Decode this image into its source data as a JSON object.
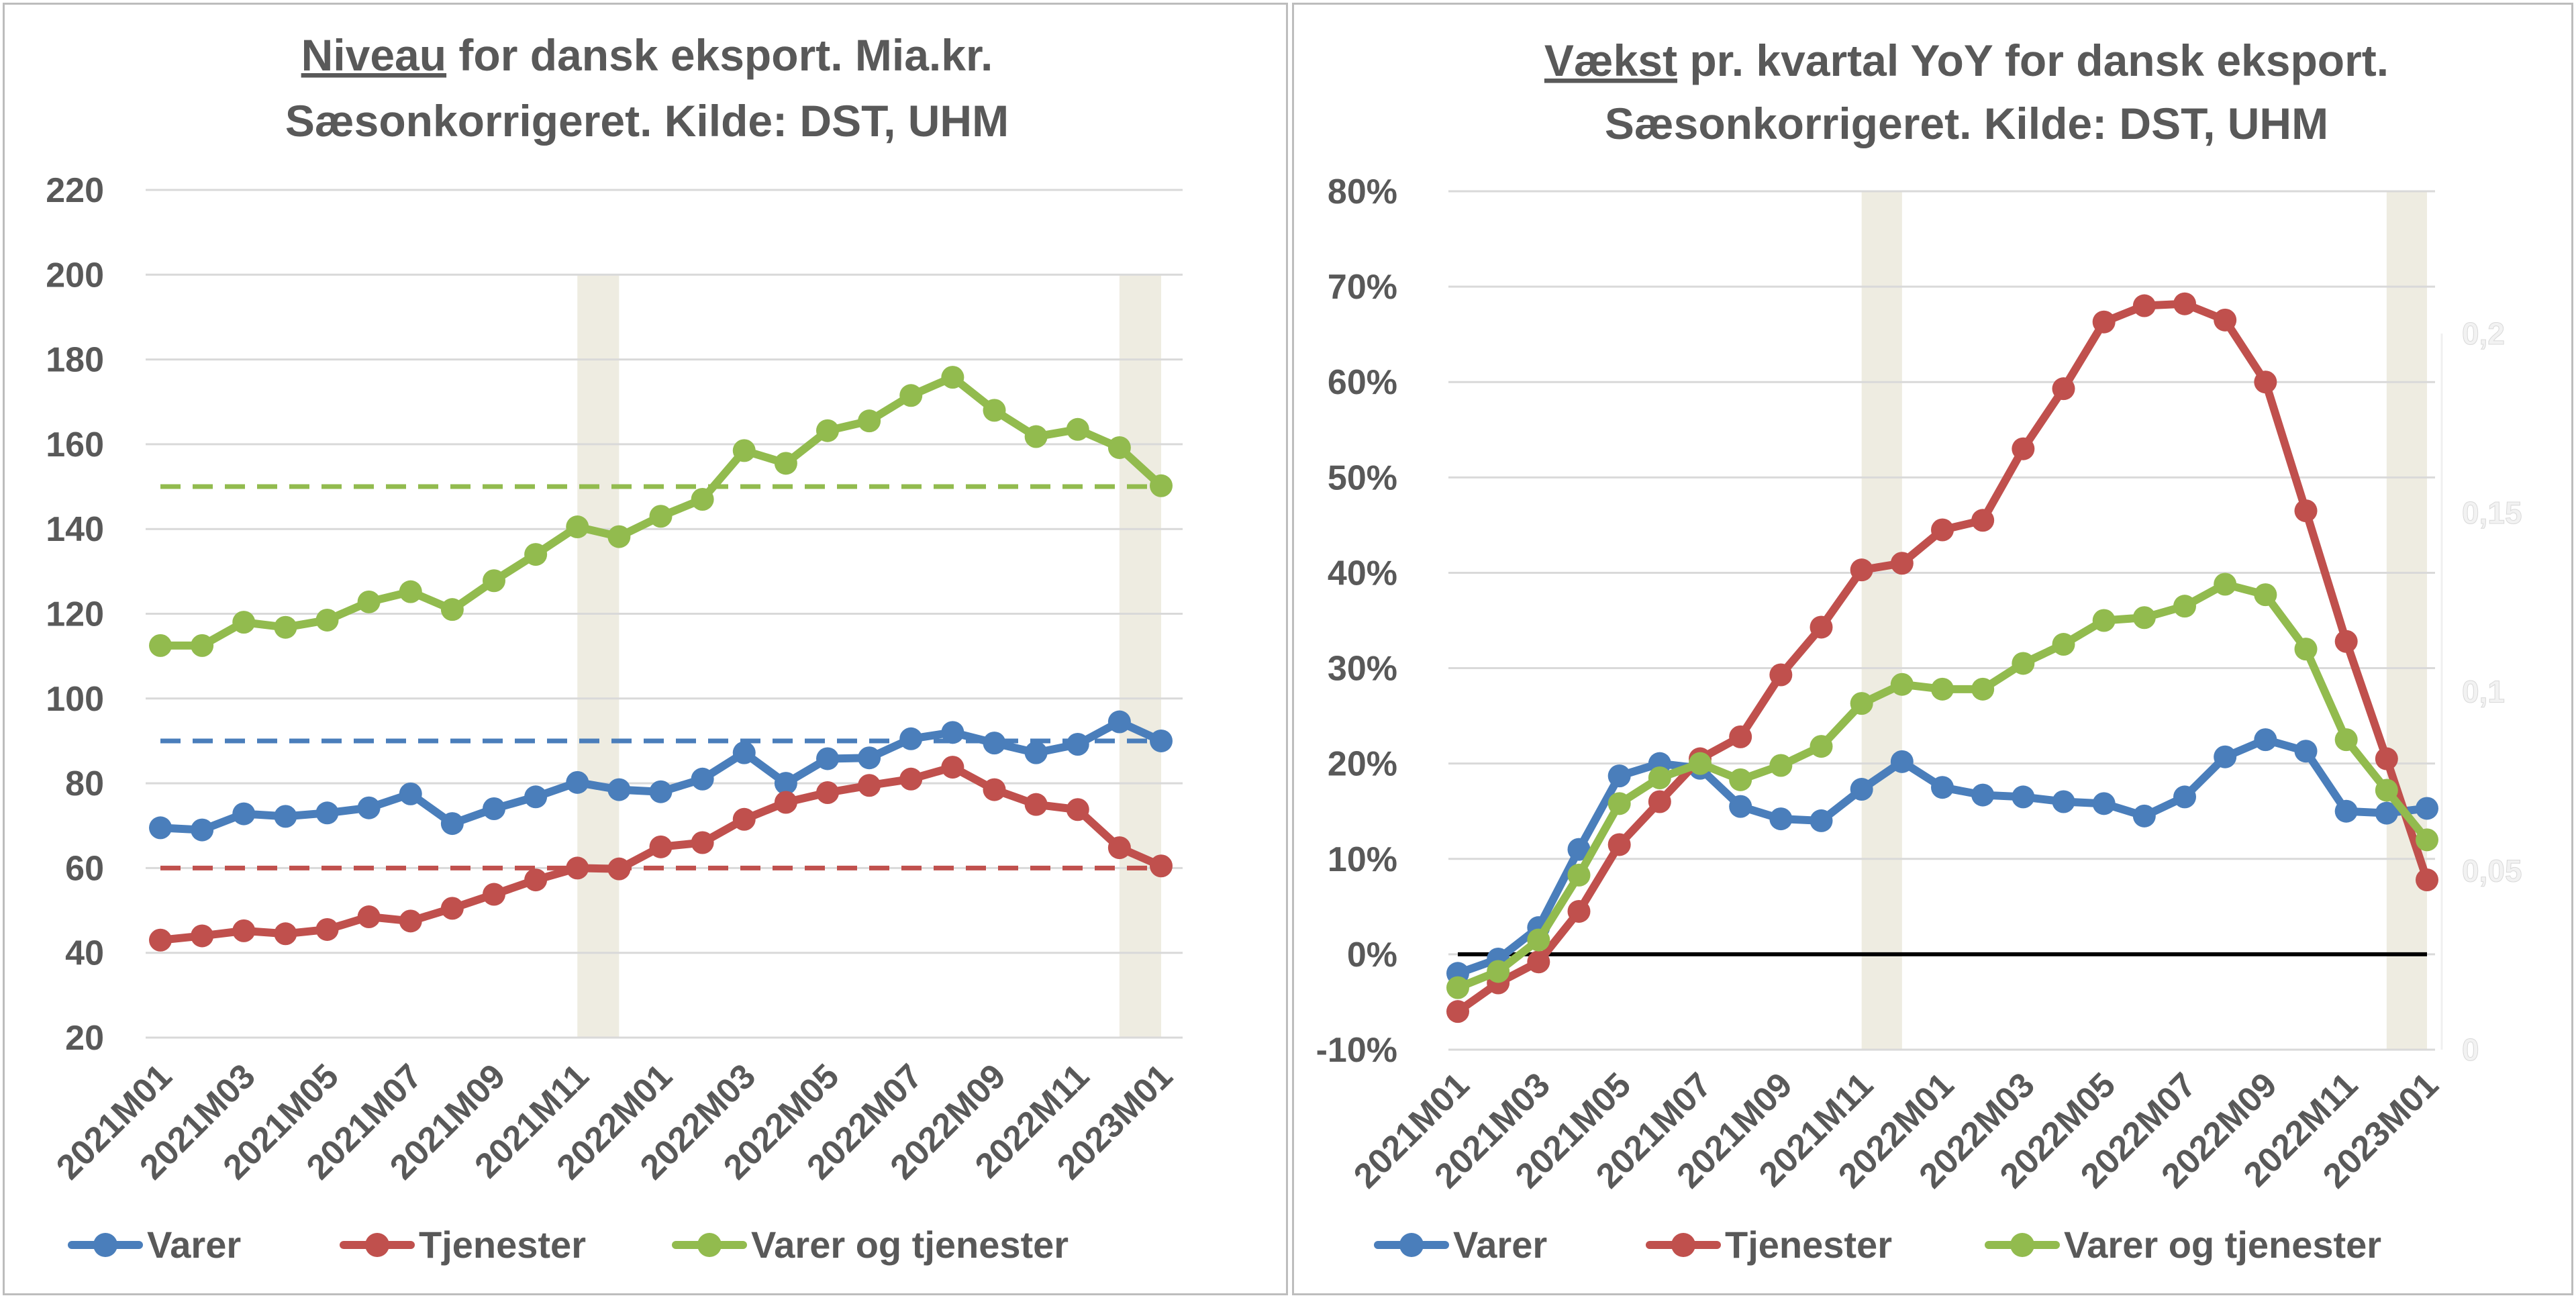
{
  "colors": {
    "varer": "#4a7ebb",
    "tjenester": "#c0504d",
    "varer_og_tjenester": "#92bb4e",
    "shading": "#eeece1",
    "grid": "#d9d9d9",
    "text": "#595959",
    "zero_line": "#000000"
  },
  "chart_data": [
    {
      "type": "line",
      "title_underlined": "Niveau",
      "title_rest": " for dansk eksport. Mia.kr.",
      "subtitle": "Sæsonkorrigeret. Kilde: DST, UHM",
      "x": [
        "2021M01",
        "2021M02",
        "2021M03",
        "2021M04",
        "2021M05",
        "2021M06",
        "2021M07",
        "2021M08",
        "2021M09",
        "2021M10",
        "2021M11",
        "2021M12",
        "2022M01",
        "2022M02",
        "2022M03",
        "2022M04",
        "2022M05",
        "2022M06",
        "2022M07",
        "2022M08",
        "2022M09",
        "2022M10",
        "2022M11",
        "2022M12",
        "2023M01"
      ],
      "x_tick_labels": [
        "2021M01",
        "2021M03",
        "2021M05",
        "2021M07",
        "2021M09",
        "2021M11",
        "2022M01",
        "2022M03",
        "2022M05",
        "2022M07",
        "2022M09",
        "2022M11",
        "2023M01"
      ],
      "ylim": [
        20,
        220
      ],
      "y_ticks": [
        20,
        40,
        60,
        80,
        100,
        120,
        140,
        160,
        180,
        200,
        220
      ],
      "y_tick_labels": [
        "20",
        "40",
        "60",
        "80",
        "100",
        "120",
        "140",
        "160",
        "180",
        "200",
        "220"
      ],
      "grid": true,
      "legend_position": "bottom",
      "shaded_periods": [
        [
          "2021M11",
          "2021M12"
        ],
        [
          "2022M12",
          "2023M01"
        ]
      ],
      "series": [
        {
          "name": "Varer",
          "key": "varer",
          "values": [
            69.5,
            69,
            72.8,
            72.2,
            73,
            74.2,
            77.5,
            70.5,
            74,
            76.8,
            80.2,
            78.5,
            78,
            81,
            87.2,
            80,
            85.8,
            86,
            90.5,
            92,
            89.5,
            87.2,
            89.2,
            94.5,
            90
          ]
        },
        {
          "name": "Tjenester",
          "key": "tjenester",
          "values": [
            43,
            44,
            45.2,
            44.5,
            45.5,
            48.5,
            47.5,
            50.5,
            53.8,
            57.2,
            60,
            59.8,
            65,
            66,
            71.5,
            75.5,
            77.8,
            79.5,
            81,
            83.8,
            78.5,
            75,
            73.8,
            64.8,
            60.5
          ]
        },
        {
          "name": "Varer og tjenester",
          "key": "varer_og_tjenester",
          "values": [
            112.5,
            112.5,
            118,
            116.8,
            118.5,
            122.8,
            125.2,
            121,
            127.8,
            134,
            140.5,
            138.2,
            143,
            147,
            158.5,
            155.5,
            163.2,
            165.5,
            171.5,
            175.8,
            168,
            161.8,
            163.5,
            159.2,
            150.2
          ]
        }
      ],
      "reference_lines": [
        {
          "key": "varer",
          "value": 90
        },
        {
          "key": "tjenester",
          "value": 60
        },
        {
          "key": "varer_og_tjenester",
          "value": 150
        }
      ]
    },
    {
      "type": "line",
      "title_underlined": "Vækst",
      "title_rest": " pr. kvartal YoY for dansk eksport.",
      "subtitle": "Sæsonkorrigeret. Kilde: DST, UHM",
      "x": [
        "2021M01",
        "2021M02",
        "2021M03",
        "2021M04",
        "2021M05",
        "2021M06",
        "2021M07",
        "2021M08",
        "2021M09",
        "2021M10",
        "2021M11",
        "2021M12",
        "2022M01",
        "2022M02",
        "2022M03",
        "2022M04",
        "2022M05",
        "2022M06",
        "2022M07",
        "2022M08",
        "2022M09",
        "2022M10",
        "2022M11",
        "2022M12",
        "2023M01"
      ],
      "x_tick_labels": [
        "2021M01",
        "2021M03",
        "2021M05",
        "2021M07",
        "2021M09",
        "2021M11",
        "2022M01",
        "2022M03",
        "2022M05",
        "2022M07",
        "2022M09",
        "2022M11",
        "2023M01"
      ],
      "ylim": [
        -0.1,
        0.8
      ],
      "y_ticks": [
        -0.1,
        0,
        0.1,
        0.2,
        0.3,
        0.4,
        0.5,
        0.6,
        0.7,
        0.8
      ],
      "y_tick_labels": [
        "-10%",
        "0%",
        "10%",
        "20%",
        "30%",
        "40%",
        "50%",
        "60%",
        "70%",
        "80%"
      ],
      "secondary_y_ticks": [
        0,
        0.05,
        0.1,
        0.15,
        0.2
      ],
      "secondary_y_tick_labels": [
        "0",
        "0,05",
        "0,1",
        "0,15",
        "0,2"
      ],
      "secondary_ylim": [
        0,
        0.2
      ],
      "grid": true,
      "legend_position": "bottom",
      "zero_line": 0,
      "shaded_periods": [
        [
          "2021M11",
          "2021M12"
        ],
        [
          "2022M12",
          "2023M01"
        ]
      ],
      "series": [
        {
          "name": "Varer",
          "key": "varer",
          "values": [
            -0.02,
            -0.005,
            0.028,
            0.11,
            0.187,
            0.2,
            0.195,
            0.155,
            0.142,
            0.14,
            0.173,
            0.202,
            0.175,
            0.167,
            0.165,
            0.16,
            0.158,
            0.145,
            0.165,
            0.207,
            0.225,
            0.213,
            0.15,
            0.148,
            0.153
          ]
        },
        {
          "name": "Tjenester",
          "key": "tjenester",
          "values": [
            -0.06,
            -0.03,
            -0.008,
            0.045,
            0.115,
            0.16,
            0.205,
            0.228,
            0.293,
            0.343,
            0.403,
            0.41,
            0.445,
            0.455,
            0.53,
            0.593,
            0.663,
            0.68,
            0.682,
            0.665,
            0.6,
            0.465,
            0.328,
            0.205,
            0.078
          ]
        },
        {
          "name": "Varer og tjenester",
          "key": "varer_og_tjenester",
          "values": [
            -0.035,
            -0.018,
            0.015,
            0.083,
            0.158,
            0.185,
            0.2,
            0.183,
            0.198,
            0.218,
            0.263,
            0.283,
            0.278,
            0.278,
            0.305,
            0.325,
            0.35,
            0.353,
            0.365,
            0.388,
            0.377,
            0.32,
            0.225,
            0.172,
            0.12
          ]
        }
      ]
    }
  ]
}
